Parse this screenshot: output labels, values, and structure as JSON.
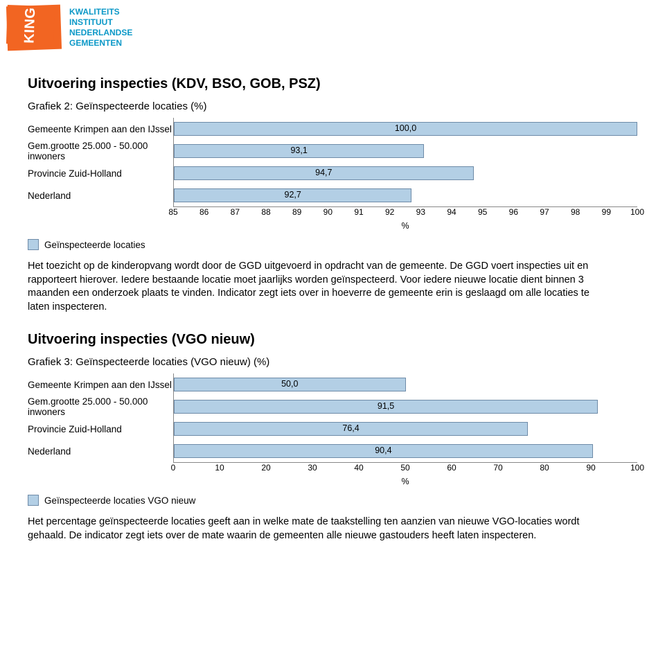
{
  "logo": {
    "badge": "KING",
    "sub_lines": [
      "KWALITEITS",
      "INSTITUUT",
      "NEDERLANDSE",
      "GEMEENTEN"
    ]
  },
  "section1": {
    "heading": "Uitvoering inspecties (KDV, BSO, GOB, PSZ)",
    "chart_title": "Grafiek 2: Geïnspecteerde locaties (%)",
    "chart": {
      "type": "bar-horizontal",
      "bar_color": "#b3cfe5",
      "bar_border": "#6e8ba8",
      "grid_color": "#888888",
      "xmin": 85,
      "xmax": 100,
      "xtick_step": 1,
      "categories": [
        "Gemeente Krimpen aan den IJssel",
        "Gem.grootte 25.000 - 50.000 inwoners",
        "Provincie Zuid-Holland",
        "Nederland"
      ],
      "values": [
        100.0,
        93.1,
        94.7,
        92.7
      ],
      "value_labels": [
        "100,0",
        "93,1",
        "94,7",
        "92,7"
      ],
      "x_axis_title": "%"
    },
    "legend": "Geïnspecteerde locaties",
    "paragraph": "Het toezicht op de kinderopvang wordt door de GGD uitgevoerd in opdracht van de gemeente. De GGD voert inspecties uit en rapporteert hierover. Iedere bestaande locatie moet jaarlijks worden geïnspecteerd. Voor iedere nieuwe locatie dient binnen 3 maanden een onderzoek plaats te vinden. Indicator zegt iets over in hoeverre de gemeente erin is geslaagd om alle locaties te laten inspecteren."
  },
  "section2": {
    "heading": "Uitvoering inspecties (VGO nieuw)",
    "chart_title": "Grafiek 3: Geïnspecteerde locaties (VGO nieuw) (%)",
    "chart": {
      "type": "bar-horizontal",
      "bar_color": "#b3cfe5",
      "bar_border": "#6e8ba8",
      "grid_color": "#888888",
      "xmin": 0,
      "xmax": 100,
      "xtick_step": 10,
      "categories": [
        "Gemeente Krimpen aan den IJssel",
        "Gem.grootte 25.000 - 50.000 inwoners",
        "Provincie Zuid-Holland",
        "Nederland"
      ],
      "values": [
        50.0,
        91.5,
        76.4,
        90.4
      ],
      "value_labels": [
        "50,0",
        "91,5",
        "76,4",
        "90,4"
      ],
      "x_axis_title": "%"
    },
    "legend": "Geïnspecteerde locaties VGO nieuw",
    "paragraph": "Het percentage geïnspecteerde locaties geeft aan in welke mate de taakstelling ten aanzien van nieuwe VGO-locaties wordt gehaald. De indicator zegt iets over de mate waarin de gemeenten alle nieuwe gastouders heeft laten inspecteren."
  }
}
